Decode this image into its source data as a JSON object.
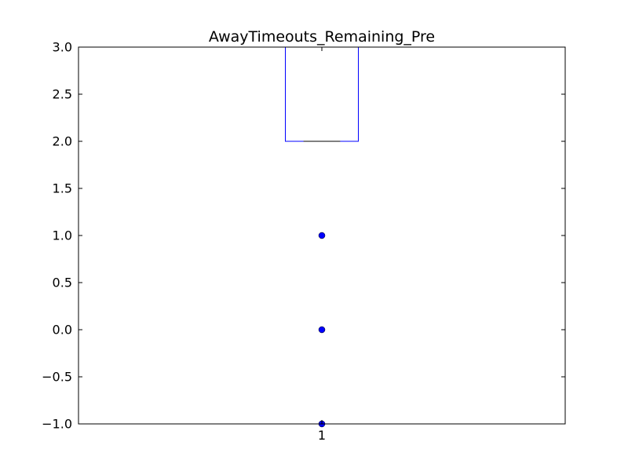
{
  "chart_data": {
    "type": "box",
    "title": "AwayTimeouts_Remaining_Pre",
    "xlabel": "",
    "ylabel": "",
    "categories": [
      "1"
    ],
    "ylim": [
      -1.0,
      3.0
    ],
    "yticks": [
      -1.0,
      -0.5,
      0.0,
      0.5,
      1.0,
      1.5,
      2.0,
      2.5,
      3.0
    ],
    "ytick_labels": [
      "−1.0",
      "−0.5",
      "0.0",
      "0.5",
      "1.0",
      "1.5",
      "2.0",
      "2.5",
      "3.0"
    ],
    "grid": false,
    "boxes": [
      {
        "category": "1",
        "q1": 2.0,
        "median": 2.0,
        "q3": 3.0,
        "whisker_low": 2.0,
        "whisker_high": 3.0,
        "outliers": [
          1.0,
          0.0,
          -1.0
        ]
      }
    ],
    "colors": {
      "box": "#0000ff",
      "median": "#000000",
      "outlier": "#0000ff",
      "axes": "#000000"
    }
  }
}
